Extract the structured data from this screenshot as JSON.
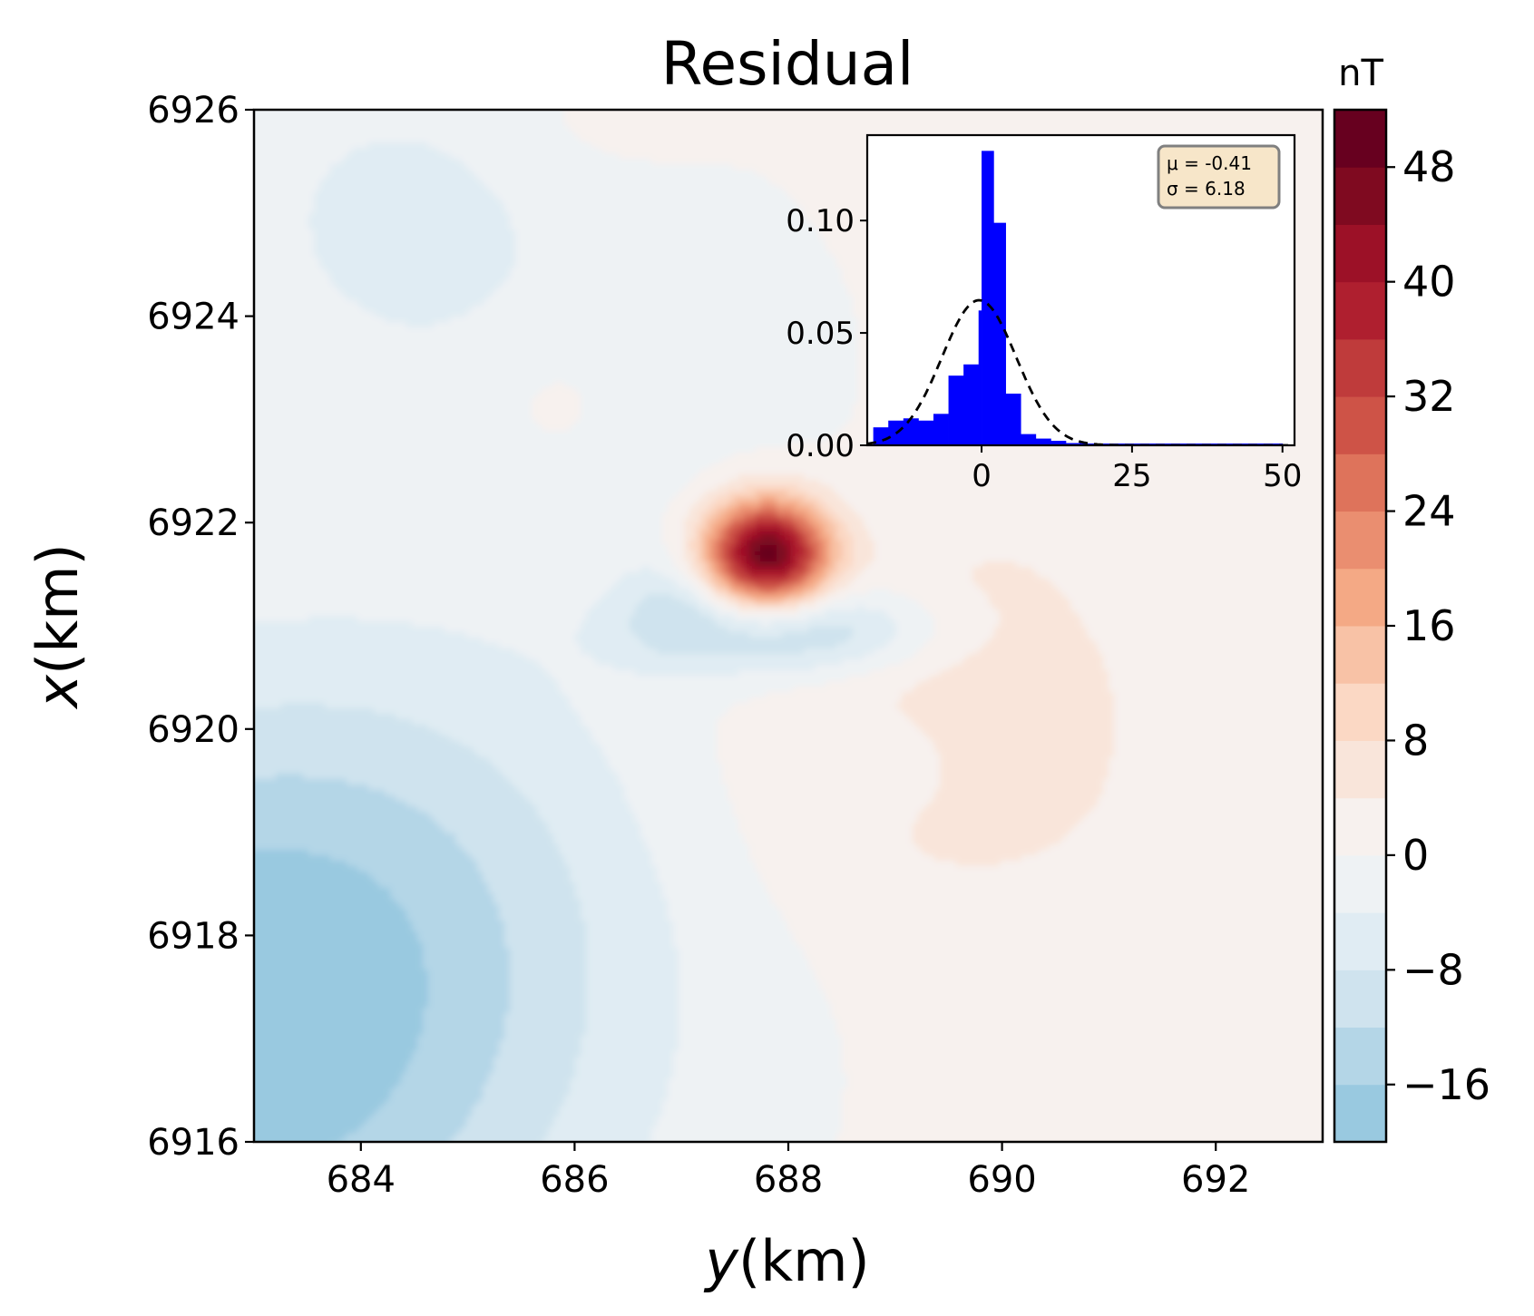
{
  "chart_data": [
    {
      "type": "heatmap",
      "title": "Residual",
      "xlabel": "y(km)",
      "xlabel_var": "y",
      "ylabel": "x(km)",
      "ylabel_var": "x",
      "xlim": [
        683,
        693
      ],
      "ylim": [
        6916,
        6926
      ],
      "xticks": [
        "684",
        "686",
        "688",
        "690",
        "692"
      ],
      "yticks": [
        "6916",
        "6918",
        "6920",
        "6922",
        "6924",
        "6926"
      ],
      "colorbar": {
        "label": "nT",
        "range": [
          -20,
          52
        ],
        "tick_values": [
          -16,
          -8,
          0,
          8,
          16,
          24,
          32,
          40,
          48
        ],
        "tick_labels": [
          "−16",
          "−8",
          "0",
          "8",
          "16",
          "24",
          "32",
          "40",
          "48"
        ],
        "levels": [
          -20,
          -16,
          -12,
          -8,
          -4,
          0,
          4,
          8,
          12,
          16,
          20,
          24,
          28,
          32,
          36,
          40,
          44,
          48,
          52
        ],
        "colors": [
          "#99c9e0",
          "#b4d6e7",
          "#cfe3ee",
          "#e0ecf3",
          "#eef2f4",
          "#f7f1ee",
          "#f9e5da",
          "#fbd8c4",
          "#f8c2a6",
          "#f4a985",
          "#ea8e70",
          "#de735b",
          "#ce5347",
          "#bf3b3b",
          "#af1f2f",
          "#9c1127",
          "#7f0a20",
          "#67001f"
        ]
      },
      "features": [
        {
          "kind": "positive anomaly",
          "center_y_km": 687.8,
          "center_x_km": 6921.7,
          "peak_nT": 50
        },
        {
          "kind": "negative anomaly",
          "center_y_km": 688.2,
          "center_x_km": 6920.9,
          "min_nT": -14
        },
        {
          "kind": "negative regional",
          "center_y_km": 683.3,
          "center_x_km": 6917.0,
          "min_nT": -18
        }
      ]
    },
    {
      "type": "histogram",
      "inset": true,
      "placement": "top-right",
      "xlim": [
        -19,
        52
      ],
      "ylim": [
        0,
        0.138
      ],
      "xticks": [
        "0",
        "25",
        "50"
      ],
      "yticks": [
        "0.00",
        "0.05",
        "0.10"
      ],
      "bar_color": "#0000ff",
      "bins": [
        {
          "x0": -18,
          "x1": -15.5,
          "y": 0.008
        },
        {
          "x0": -15.5,
          "x1": -13,
          "y": 0.011
        },
        {
          "x0": -13,
          "x1": -10.5,
          "y": 0.012
        },
        {
          "x0": -10.5,
          "x1": -8,
          "y": 0.011
        },
        {
          "x0": -8,
          "x1": -5.5,
          "y": 0.014
        },
        {
          "x0": -5.5,
          "x1": -3,
          "y": 0.031
        },
        {
          "x0": -3,
          "x1": -0.5,
          "y": 0.036
        },
        {
          "x0": -0.5,
          "x1": 0,
          "y": 0.06
        },
        {
          "x0": 0,
          "x1": 2,
          "y": 0.131
        },
        {
          "x0": 2,
          "x1": 4,
          "y": 0.099
        },
        {
          "x0": 4,
          "x1": 6.5,
          "y": 0.023
        },
        {
          "x0": 6.5,
          "x1": 9,
          "y": 0.005
        },
        {
          "x0": 9,
          "x1": 11.5,
          "y": 0.003
        },
        {
          "x0": 11.5,
          "x1": 14,
          "y": 0.002
        },
        {
          "x0": 14,
          "x1": 16.5,
          "y": 0.001
        },
        {
          "x0": 16.5,
          "x1": 50,
          "y": 0.0008
        }
      ],
      "normal_fit": {
        "mu": -0.41,
        "sigma": 6.18,
        "style": "dashed",
        "color": "#000000"
      },
      "stats_box": [
        "μ = -0.41",
        "σ = 6.18"
      ]
    }
  ]
}
